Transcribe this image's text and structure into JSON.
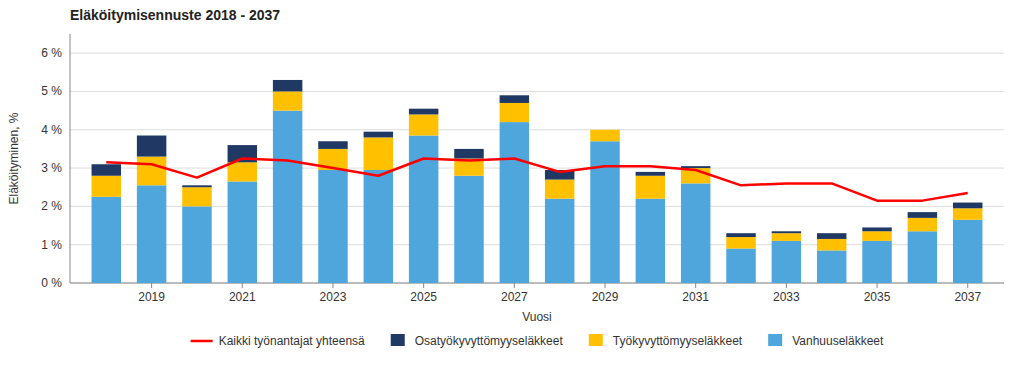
{
  "chart_data": {
    "type": "bar",
    "stacked": true,
    "title": "Eläköitymisennuste 2018 - 2037",
    "xlabel": "Vuosi",
    "ylabel": "Eläköityminen, %",
    "x": [
      2018,
      2019,
      2020,
      2021,
      2022,
      2023,
      2024,
      2025,
      2026,
      2027,
      2028,
      2029,
      2030,
      2031,
      2032,
      2033,
      2034,
      2035,
      2036,
      2037
    ],
    "series": [
      {
        "name": "Vanhuuseläkkeet",
        "color": "#4EA6DC",
        "values": [
          2.25,
          2.55,
          2.0,
          2.65,
          4.5,
          2.95,
          2.95,
          3.85,
          2.8,
          4.2,
          2.2,
          3.7,
          2.2,
          2.6,
          0.9,
          1.1,
          0.85,
          1.1,
          1.35,
          1.65
        ]
      },
      {
        "name": "Työkyvyttömyyseläkkeet",
        "color": "#FFC000",
        "values": [
          0.55,
          0.75,
          0.5,
          0.5,
          0.5,
          0.55,
          0.85,
          0.55,
          0.45,
          0.5,
          0.5,
          0.3,
          0.6,
          0.4,
          0.3,
          0.2,
          0.3,
          0.25,
          0.35,
          0.3
        ]
      },
      {
        "name": "Osatyökyvyttömyyseläkkeet",
        "color": "#1F3864",
        "values": [
          0.3,
          0.55,
          0.05,
          0.45,
          0.3,
          0.2,
          0.15,
          0.15,
          0.25,
          0.2,
          0.25,
          0.0,
          0.1,
          0.05,
          0.1,
          0.05,
          0.15,
          0.1,
          0.15,
          0.15
        ]
      },
      {
        "name": "Kaikki työnantajat yhteensä",
        "type": "line",
        "color": "#FF0000",
        "values": [
          3.15,
          3.1,
          2.75,
          3.25,
          3.2,
          3.0,
          2.8,
          3.25,
          3.2,
          3.25,
          2.9,
          3.05,
          3.05,
          2.95,
          2.55,
          2.6,
          2.6,
          2.15,
          2.15,
          2.35
        ]
      }
    ],
    "xlim": [
      2017.2,
      2037.8
    ],
    "xticks": [
      2019,
      2021,
      2023,
      2025,
      2027,
      2029,
      2031,
      2033,
      2035,
      2037
    ],
    "ylim": [
      0,
      6.5
    ],
    "yticks": [
      {
        "value": 0,
        "label": "0 %"
      },
      {
        "value": 1,
        "label": "1 %"
      },
      {
        "value": 2,
        "label": "2 %"
      },
      {
        "value": 3,
        "label": "3 %"
      },
      {
        "value": 4,
        "label": "4 %"
      },
      {
        "value": 5,
        "label": "5 %"
      },
      {
        "value": 6,
        "label": "6 %"
      }
    ],
    "grid": true,
    "legend": "bottom"
  }
}
